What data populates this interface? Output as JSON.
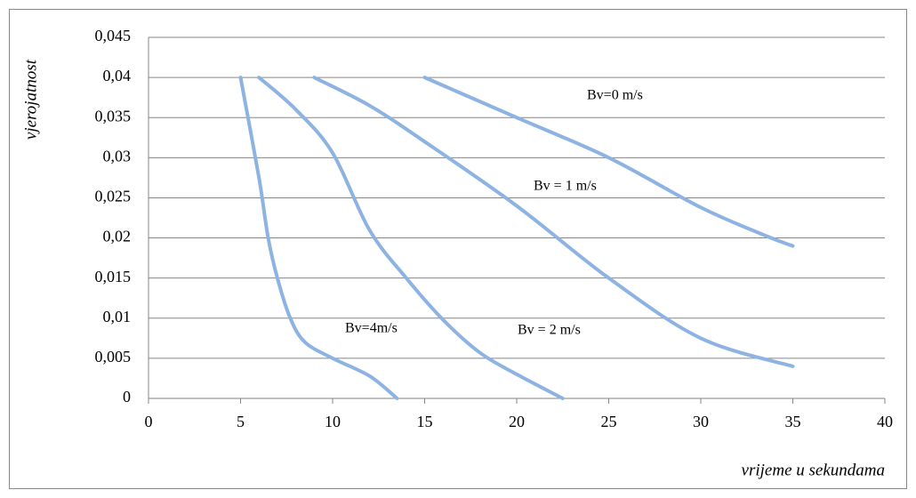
{
  "chart_data": {
    "type": "line",
    "x_label": "vrijeme u sekundama",
    "y_label": "vjerojatnost",
    "annotations": [
      "Bv=0 m/s",
      "Bv = 1 m/s",
      "Bv = 2 m/s",
      "Bv=4m/s"
    ],
    "xlim": [
      0,
      40
    ],
    "xticks": [
      0,
      5,
      10,
      15,
      20,
      25,
      30,
      35,
      40
    ],
    "ylim": [
      0,
      0.045
    ],
    "yticks": [
      0,
      {
        "value": 0.005,
        "label": "0,005"
      },
      {
        "value": 0.01,
        "label": "0,01"
      },
      {
        "value": 0.015,
        "label": "0,015"
      },
      {
        "value": 0.02,
        "label": "0,02"
      },
      {
        "value": 0.025,
        "label": "0,025"
      },
      {
        "value": 0.03,
        "label": "0,03"
      },
      {
        "value": 0.035,
        "label": "0,035"
      },
      {
        "value": 0.04,
        "label": "0,04"
      },
      {
        "value": 0.045,
        "label": "0,045"
      }
    ],
    "grid": true,
    "series": [
      {
        "color": "#8db3e2",
        "x": [
          15,
          20,
          25,
          30,
          33.5,
          35
        ],
        "values": [
          0.04,
          0.035,
          0.03,
          0.0238,
          0.0203,
          0.019
        ]
      },
      {
        "color": "#8db3e2",
        "x": [
          9,
          12,
          15,
          20,
          25,
          30,
          35
        ],
        "values": [
          0.04,
          0.0365,
          0.032,
          0.024,
          0.015,
          0.0075,
          0.004
        ]
      },
      {
        "color": "#8db3e2",
        "x": [
          6,
          8,
          10,
          12,
          14,
          16,
          18,
          20,
          22.5
        ],
        "values": [
          0.04,
          0.036,
          0.0306,
          0.021,
          0.015,
          0.0098,
          0.0057,
          0.003,
          0
        ]
      },
      {
        "color": "#8db3e2",
        "x": [
          5,
          6,
          6.5,
          7,
          7.7,
          8.5,
          10,
          12,
          13.5
        ],
        "values": [
          0.04,
          0.0275,
          0.02,
          0.015,
          0.01,
          0.007,
          0.005,
          0.0028,
          0
        ]
      }
    ]
  }
}
